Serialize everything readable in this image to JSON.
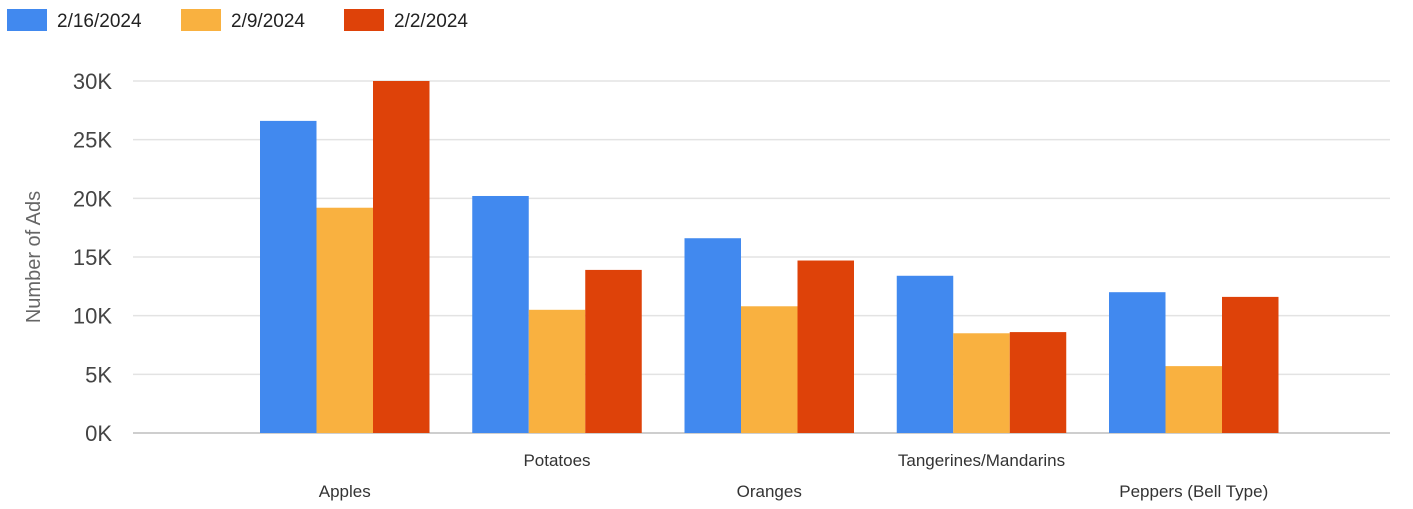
{
  "chart_data": {
    "type": "bar",
    "categories": [
      "Apples",
      "Potatoes",
      "Oranges",
      "Tangerines/Mandarins",
      "Peppers (Bell Type)"
    ],
    "series": [
      {
        "name": "2/16/2024",
        "color": "#4189ef",
        "values": [
          26600,
          20200,
          16600,
          13400,
          12000
        ]
      },
      {
        "name": "2/9/2024",
        "color": "#f9b140",
        "values": [
          19200,
          10500,
          10800,
          8500,
          5700
        ]
      },
      {
        "name": "2/2/2024",
        "color": "#de4209",
        "values": [
          30000,
          13900,
          14700,
          8600,
          11600
        ]
      }
    ],
    "ylabel": "Number of Ads",
    "ylim": [
      0,
      30000
    ],
    "yticks": [
      0,
      5000,
      10000,
      15000,
      20000,
      25000,
      30000
    ],
    "ytick_labels": [
      "0K",
      "5K",
      "10K",
      "15K",
      "20K",
      "25K",
      "30K"
    ],
    "grid": true,
    "legend_position": "top-left",
    "xtick_labels_staggered": true
  }
}
